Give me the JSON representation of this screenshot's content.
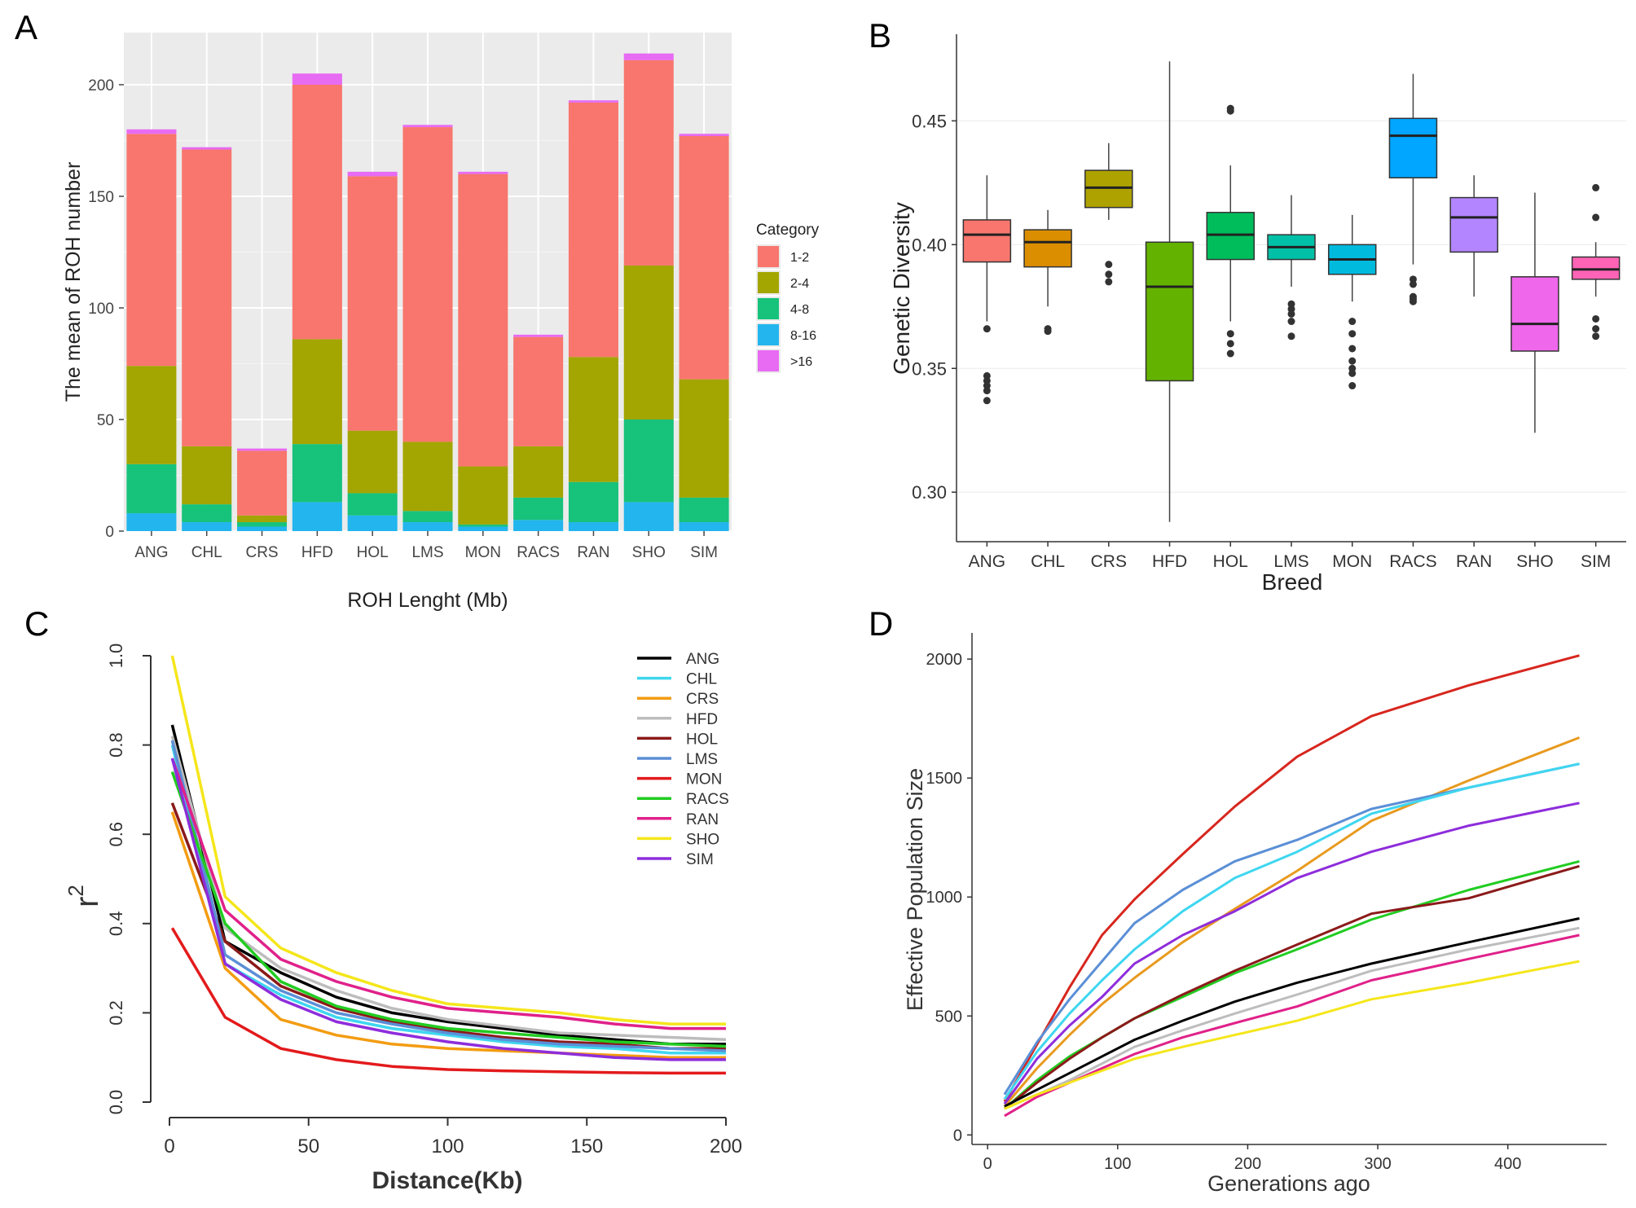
{
  "panel_labels": {
    "a": "A",
    "b": "B",
    "c": "C",
    "d": "D"
  },
  "chart_data": [
    {
      "id": "A",
      "type": "bar",
      "stacked": true,
      "xlabel": "ROH Lenght (Mb)",
      "ylabel": "The mean of ROH number",
      "ylim": [
        0,
        225
      ],
      "yticks": [
        0,
        50,
        100,
        150,
        200
      ],
      "categories": [
        "ANG",
        "CHL",
        "CRS",
        "HFD",
        "HOL",
        "LMS",
        "MON",
        "RACS",
        "RAN",
        "SHO",
        "SIM"
      ],
      "legend_title": "Category",
      "series": [
        {
          "name": "8-16",
          "color": "#22b5ee",
          "values": [
            8,
            4,
            2,
            13,
            7,
            4,
            2,
            5,
            4,
            13,
            4
          ]
        },
        {
          "name": "4-8",
          "color": "#17c27b",
          "values": [
            22,
            8,
            2,
            26,
            10,
            5,
            1,
            10,
            18,
            37,
            11
          ]
        },
        {
          "name": "2-4",
          "color": "#a3a500",
          "values": [
            44,
            26,
            3,
            47,
            28,
            31,
            26,
            23,
            56,
            69,
            53
          ]
        },
        {
          "name": "1-2",
          "color": "#f8766d",
          "values": [
            104,
            133,
            29,
            114,
            114,
            141,
            131,
            49,
            114,
            92,
            109
          ]
        },
        {
          "name": ">16",
          "color": "#e76bf3",
          "values": [
            2,
            1,
            1,
            5,
            2,
            1,
            1,
            1,
            1,
            3,
            1
          ]
        }
      ],
      "legend_order": [
        "1-2",
        "2-4",
        "4-8",
        "8-16",
        ">16"
      ]
    },
    {
      "id": "B",
      "type": "boxplot",
      "xlabel": "Breed",
      "ylabel": "Genetic Diversity",
      "ylim": [
        0.28,
        0.485
      ],
      "yticks": [
        "0.30",
        "0.35",
        "0.40",
        "0.45"
      ],
      "categories": [
        "ANG",
        "CHL",
        "CRS",
        "HFD",
        "HOL",
        "LMS",
        "MON",
        "RACS",
        "RAN",
        "SHO",
        "SIM"
      ],
      "boxes": [
        {
          "name": "ANG",
          "color": "#f8766d",
          "q1": 0.393,
          "median": 0.404,
          "q3": 0.41,
          "low": 0.369,
          "high": 0.428,
          "outliers": [
            0.366,
            0.347,
            0.345,
            0.343,
            0.341,
            0.337
          ]
        },
        {
          "name": "CHL",
          "color": "#db8e00",
          "q1": 0.391,
          "median": 0.401,
          "q3": 0.406,
          "low": 0.375,
          "high": 0.414,
          "outliers": [
            0.366,
            0.365
          ]
        },
        {
          "name": "CRS",
          "color": "#aea200",
          "q1": 0.415,
          "median": 0.423,
          "q3": 0.43,
          "low": 0.41,
          "high": 0.441,
          "outliers": [
            0.392,
            0.388,
            0.385
          ]
        },
        {
          "name": "HFD",
          "color": "#64b200",
          "q1": 0.345,
          "median": 0.383,
          "q3": 0.401,
          "low": 0.288,
          "high": 0.474,
          "outliers": []
        },
        {
          "name": "HOL",
          "color": "#00bd5c",
          "q1": 0.394,
          "median": 0.404,
          "q3": 0.413,
          "low": 0.369,
          "high": 0.432,
          "outliers": [
            0.455,
            0.454,
            0.364,
            0.36,
            0.356
          ]
        },
        {
          "name": "LMS",
          "color": "#00c1a7",
          "q1": 0.394,
          "median": 0.399,
          "q3": 0.404,
          "low": 0.383,
          "high": 0.42,
          "outliers": [
            0.376,
            0.374,
            0.372,
            0.369,
            0.363
          ]
        },
        {
          "name": "MON",
          "color": "#00bade",
          "q1": 0.388,
          "median": 0.394,
          "q3": 0.4,
          "low": 0.377,
          "high": 0.412,
          "outliers": [
            0.369,
            0.364,
            0.358,
            0.353,
            0.35,
            0.348,
            0.343
          ]
        },
        {
          "name": "RACS",
          "color": "#00a6ff",
          "q1": 0.427,
          "median": 0.444,
          "q3": 0.451,
          "low": 0.392,
          "high": 0.469,
          "outliers": [
            0.386,
            0.384,
            0.379,
            0.378,
            0.377
          ]
        },
        {
          "name": "RAN",
          "color": "#b385ff",
          "q1": 0.397,
          "median": 0.411,
          "q3": 0.419,
          "low": 0.379,
          "high": 0.428,
          "outliers": []
        },
        {
          "name": "SHO",
          "color": "#ef67eb",
          "q1": 0.357,
          "median": 0.368,
          "q3": 0.387,
          "low": 0.324,
          "high": 0.421,
          "outliers": []
        },
        {
          "name": "SIM",
          "color": "#ff63b6",
          "q1": 0.386,
          "median": 0.39,
          "q3": 0.395,
          "low": 0.379,
          "high": 0.401,
          "outliers": [
            0.423,
            0.411,
            0.37,
            0.366,
            0.363
          ]
        }
      ]
    },
    {
      "id": "C",
      "type": "line",
      "xlabel": "Distance(Kb)",
      "ylabel": "r",
      "ylabel_sup": "2",
      "xlim": [
        0,
        200
      ],
      "ylim": [
        0,
        1
      ],
      "xticks": [
        0,
        50,
        100,
        150,
        200
      ],
      "yticks": [
        "0.0",
        "0.2",
        "0.4",
        "0.6",
        "0.8",
        "1.0"
      ],
      "x": [
        1,
        20,
        40,
        60,
        80,
        100,
        120,
        140,
        160,
        180,
        200
      ],
      "series": [
        {
          "name": "ANG",
          "color": "#000000",
          "values": [
            0.845,
            0.36,
            0.29,
            0.235,
            0.2,
            0.18,
            0.165,
            0.15,
            0.14,
            0.13,
            0.13
          ]
        },
        {
          "name": "CHL",
          "color": "#3fd6f0",
          "values": [
            0.8,
            0.31,
            0.24,
            0.19,
            0.165,
            0.15,
            0.135,
            0.125,
            0.12,
            0.11,
            0.11
          ]
        },
        {
          "name": "CRS",
          "color": "#f39c12",
          "values": [
            0.65,
            0.3,
            0.185,
            0.15,
            0.13,
            0.12,
            0.115,
            0.11,
            0.105,
            0.1,
            0.1
          ]
        },
        {
          "name": "HFD",
          "color": "#bdbdbd",
          "values": [
            0.82,
            0.39,
            0.3,
            0.25,
            0.21,
            0.185,
            0.17,
            0.155,
            0.15,
            0.145,
            0.14
          ]
        },
        {
          "name": "HOL",
          "color": "#8b1a1a",
          "values": [
            0.67,
            0.36,
            0.26,
            0.21,
            0.18,
            0.16,
            0.145,
            0.135,
            0.13,
            0.12,
            0.12
          ]
        },
        {
          "name": "LMS",
          "color": "#5b8fd6",
          "values": [
            0.81,
            0.33,
            0.25,
            0.2,
            0.175,
            0.155,
            0.14,
            0.13,
            0.125,
            0.12,
            0.115
          ]
        },
        {
          "name": "MON",
          "color": "#e31a1c",
          "values": [
            0.39,
            0.19,
            0.12,
            0.095,
            0.08,
            0.073,
            0.07,
            0.068,
            0.066,
            0.065,
            0.065
          ]
        },
        {
          "name": "RACS",
          "color": "#22cc22",
          "values": [
            0.74,
            0.4,
            0.27,
            0.215,
            0.185,
            0.165,
            0.155,
            0.145,
            0.135,
            0.13,
            0.125
          ]
        },
        {
          "name": "RAN",
          "color": "#e0218a",
          "values": [
            0.77,
            0.43,
            0.32,
            0.27,
            0.235,
            0.21,
            0.2,
            0.19,
            0.175,
            0.165,
            0.165
          ]
        },
        {
          "name": "SHO",
          "color": "#f5e61b",
          "values": [
            1.0,
            0.46,
            0.345,
            0.29,
            0.25,
            0.22,
            0.21,
            0.2,
            0.185,
            0.175,
            0.175
          ]
        },
        {
          "name": "SIM",
          "color": "#8e2ddb",
          "values": [
            0.77,
            0.31,
            0.23,
            0.18,
            0.155,
            0.135,
            0.12,
            0.11,
            0.1,
            0.095,
            0.095
          ]
        }
      ]
    },
    {
      "id": "D",
      "type": "line",
      "xlabel": "Generations ago",
      "ylabel": "Effective Population Size",
      "xlim": [
        -12,
        476
      ],
      "ylim": [
        -40,
        2110
      ],
      "xticks": [
        0,
        100,
        200,
        300,
        400
      ],
      "yticks": [
        0,
        500,
        1000,
        1500,
        2000
      ],
      "x": [
        13,
        38,
        63,
        88,
        113,
        150,
        190,
        238,
        295,
        370,
        455
      ],
      "series": [
        {
          "name": "MON",
          "color": "#d7261e",
          "values": [
            140,
            380,
            620,
            840,
            990,
            1180,
            1380,
            1590,
            1760,
            1890,
            2015
          ]
        },
        {
          "name": "CRS",
          "color": "#e89a1e",
          "values": [
            120,
            280,
            420,
            550,
            660,
            810,
            950,
            1110,
            1320,
            1490,
            1670
          ]
        },
        {
          "name": "LMS",
          "color": "#5b8fd6",
          "values": [
            170,
            390,
            570,
            730,
            890,
            1030,
            1150,
            1240,
            1370,
            1460,
            1560
          ]
        },
        {
          "name": "CHL",
          "color": "#3fd6f0",
          "values": [
            150,
            350,
            510,
            650,
            780,
            940,
            1080,
            1190,
            1350,
            1460,
            1560
          ]
        },
        {
          "name": "SIM",
          "color": "#8e2ddb",
          "values": [
            130,
            320,
            460,
            580,
            720,
            840,
            940,
            1080,
            1190,
            1300,
            1395
          ]
        },
        {
          "name": "RACS",
          "color": "#22cc22",
          "values": [
            110,
            230,
            330,
            410,
            490,
            580,
            680,
            780,
            905,
            1030,
            1150
          ]
        },
        {
          "name": "HOL",
          "color": "#8b1a1a",
          "values": [
            110,
            220,
            320,
            410,
            490,
            590,
            690,
            800,
            930,
            995,
            1130
          ]
        },
        {
          "name": "ANG",
          "color": "#000000",
          "values": [
            120,
            190,
            260,
            330,
            400,
            480,
            560,
            640,
            720,
            810,
            910
          ]
        },
        {
          "name": "HFD",
          "color": "#bdbdbd",
          "values": [
            110,
            170,
            230,
            300,
            370,
            440,
            510,
            590,
            690,
            780,
            870
          ]
        },
        {
          "name": "RAN",
          "color": "#e0218a",
          "values": [
            80,
            160,
            220,
            280,
            340,
            410,
            470,
            540,
            650,
            740,
            840
          ]
        },
        {
          "name": "SHO",
          "color": "#f5e61b",
          "values": [
            110,
            170,
            220,
            270,
            320,
            370,
            420,
            480,
            570,
            640,
            730
          ]
        }
      ]
    }
  ]
}
